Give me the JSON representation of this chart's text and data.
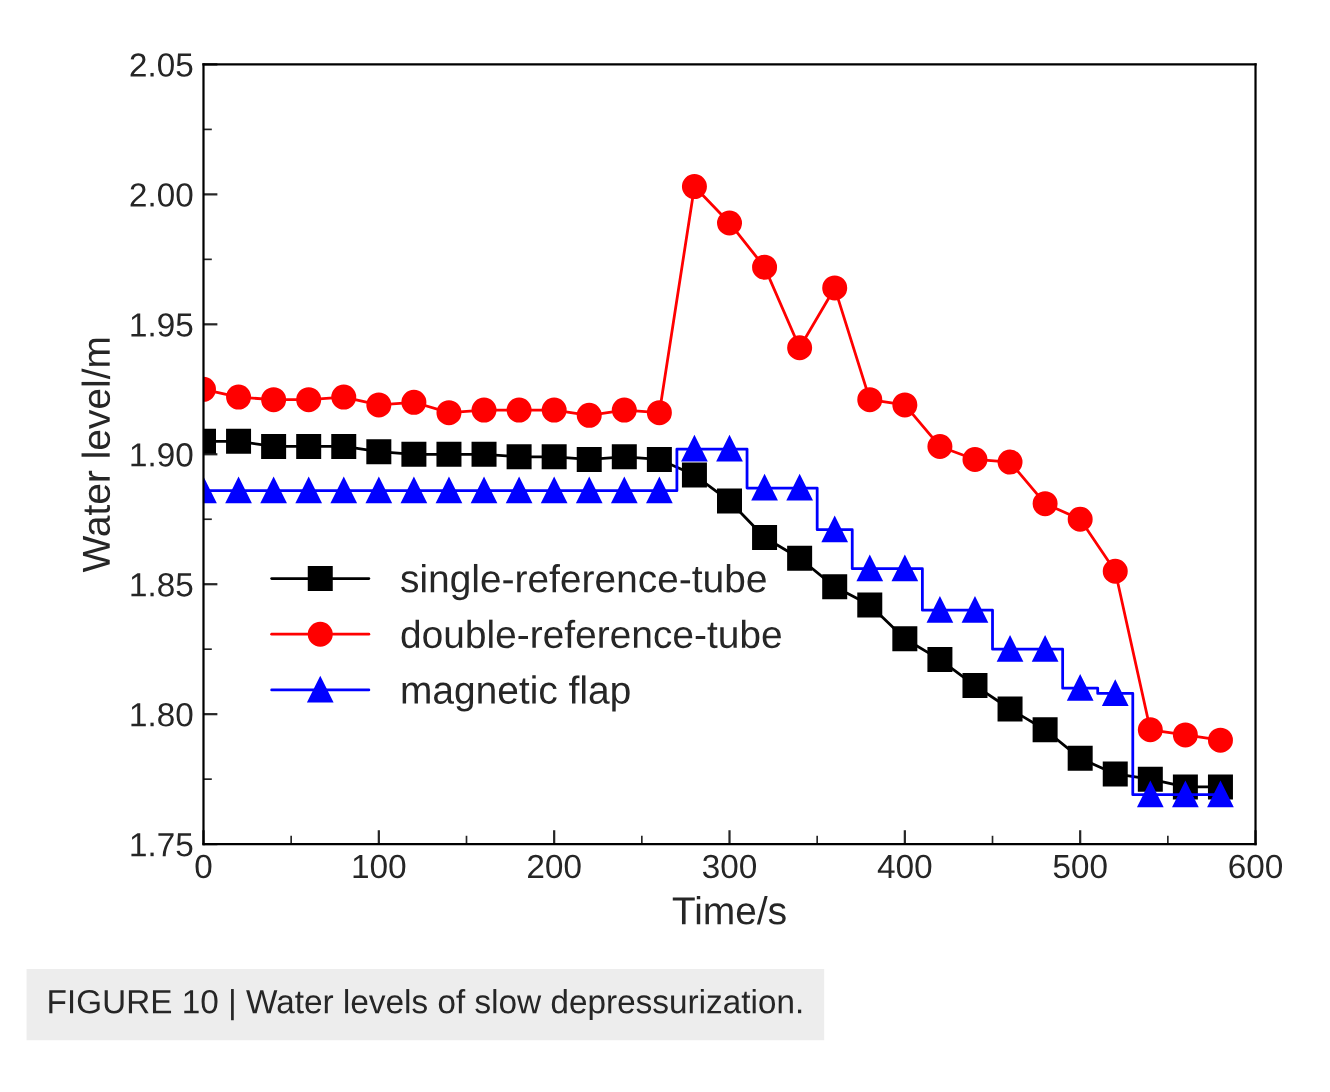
{
  "chart_data": {
    "type": "line",
    "xlabel": "Time/s",
    "ylabel": "Water level/m",
    "x": [
      0,
      20,
      40,
      60,
      80,
      100,
      120,
      140,
      160,
      180,
      200,
      220,
      240,
      260,
      280,
      300,
      320,
      340,
      360,
      380,
      400,
      420,
      440,
      460,
      480,
      500,
      520,
      540,
      560,
      580
    ],
    "series": [
      {
        "name": "single-reference-tube",
        "color": "#000000",
        "marker": "square",
        "values": [
          1.905,
          1.905,
          1.903,
          1.903,
          1.903,
          1.901,
          1.9,
          1.9,
          1.9,
          1.899,
          1.899,
          1.898,
          1.899,
          1.898,
          1.892,
          1.882,
          1.868,
          1.86,
          1.849,
          1.842,
          1.829,
          1.821,
          1.811,
          1.802,
          1.794,
          1.783,
          1.777,
          1.775,
          1.772,
          1.772
        ]
      },
      {
        "name": "double-reference-tube",
        "color": "#ff0000",
        "marker": "circle",
        "values": [
          1.925,
          1.922,
          1.921,
          1.921,
          1.922,
          1.919,
          1.92,
          1.916,
          1.917,
          1.917,
          1.917,
          1.915,
          1.917,
          1.916,
          2.003,
          1.989,
          1.972,
          1.941,
          1.964,
          1.921,
          1.919,
          1.903,
          1.898,
          1.897,
          1.881,
          1.875,
          1.855,
          1.794,
          1.792,
          1.79
        ]
      },
      {
        "name": "magnetic flap",
        "color": "#0000ff",
        "marker": "triangle",
        "type": "step",
        "values": [
          1.886,
          1.886,
          1.886,
          1.886,
          1.886,
          1.886,
          1.886,
          1.886,
          1.886,
          1.886,
          1.886,
          1.886,
          1.886,
          1.886,
          1.902,
          1.902,
          1.887,
          1.887,
          1.871,
          1.856,
          1.856,
          1.84,
          1.84,
          1.825,
          1.825,
          1.81,
          1.808,
          1.769,
          1.769,
          1.769
        ]
      }
    ],
    "xlim": [
      0,
      600
    ],
    "xticks": [
      0,
      100,
      200,
      300,
      400,
      500,
      600
    ],
    "ylim": [
      1.75,
      2.05
    ],
    "yticks": [
      {
        "value": 1.75,
        "label": "1.75"
      },
      {
        "value": 1.8,
        "label": "1.80"
      },
      {
        "value": 1.85,
        "label": "1.85"
      },
      {
        "value": 1.9,
        "label": "1.90"
      },
      {
        "value": 1.95,
        "label": "1.95"
      },
      {
        "value": 2.0,
        "label": "2.00"
      },
      {
        "value": 2.05,
        "label": "2.05"
      }
    ],
    "grid": false,
    "legend": "lower left",
    "annotations": [
      "FIGURE 10 | Water levels of slow depressurization."
    ]
  }
}
